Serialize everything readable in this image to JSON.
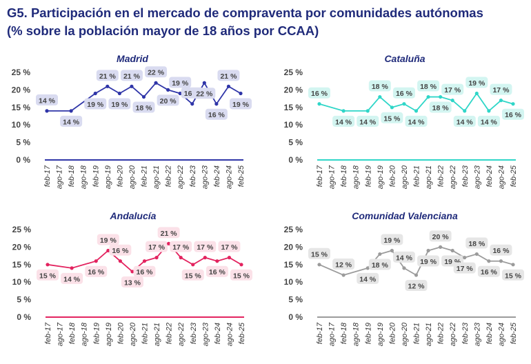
{
  "header": {
    "title_line1": "G5. Participación en el mercado de compraventa por comunidades autónomas",
    "title_line2": "(% sobre la población mayor de 18 años por CCAA)"
  },
  "chart_data": [
    {
      "type": "line",
      "title": "Madrid",
      "color": "#2f35a8",
      "label_bg": "#d9dbf0",
      "categories": [
        "feb-17",
        "ago-17",
        "feb-18",
        "ago-18",
        "feb-19",
        "ago-19",
        "feb-20",
        "ago-20",
        "feb-21",
        "ago-21",
        "feb-22",
        "ago-22",
        "feb-23",
        "ago-23",
        "feb-24",
        "ago-24",
        "feb-25"
      ],
      "values": [
        14,
        null,
        14,
        null,
        19,
        21,
        19,
        21,
        18,
        22,
        20,
        19,
        16,
        22,
        16,
        21,
        19
      ],
      "data_labels": [
        "14 %",
        null,
        "14 %",
        null,
        "19 %",
        "21 %",
        "19 %",
        "21 %",
        "18 %",
        "22 %",
        "20 %",
        "19 %",
        "16 %",
        "22 %",
        "16 %",
        "21 %",
        "19 %"
      ],
      "yticks": [
        "0 %",
        "5 %",
        "10 %",
        "15 %",
        "20 %",
        "25 %"
      ],
      "ylim": [
        0,
        25
      ],
      "grid": false
    },
    {
      "type": "line",
      "title": "Cataluña",
      "color": "#2fd6c8",
      "label_bg": "#d3f5f1",
      "categories": [
        "feb-17",
        "ago-17",
        "feb-18",
        "ago-18",
        "feb-19",
        "ago-19",
        "feb-20",
        "ago-20",
        "feb-21",
        "ago-21",
        "feb-22",
        "ago-22",
        "feb-23",
        "ago-23",
        "feb-24",
        "ago-24",
        "feb-25"
      ],
      "values": [
        16,
        null,
        14,
        null,
        14,
        18,
        15,
        16,
        14,
        18,
        18,
        17,
        14,
        19,
        14,
        17,
        16
      ],
      "data_labels": [
        "16 %",
        null,
        "14 %",
        null,
        "14 %",
        "18 %",
        "15 %",
        "16 %",
        "14 %",
        "18 %",
        "18 %",
        "17 %",
        "14 %",
        "19 %",
        "14 %",
        "17 %",
        "16 %"
      ],
      "yticks": [
        "0 %",
        "5 %",
        "10 %",
        "15 %",
        "20 %",
        "25 %"
      ],
      "ylim": [
        0,
        25
      ],
      "grid": false
    },
    {
      "type": "line",
      "title": "Andalucía",
      "color": "#e3235f",
      "label_bg": "#fbe1e8",
      "categories": [
        "feb-17",
        "ago-17",
        "feb-18",
        "ago-18",
        "feb-19",
        "ago-19",
        "feb-20",
        "ago-20",
        "feb-21",
        "ago-21",
        "feb-22",
        "ago-22",
        "feb-23",
        "ago-23",
        "feb-24",
        "ago-24",
        "feb-25"
      ],
      "values": [
        15,
        null,
        14,
        null,
        16,
        19,
        16,
        13,
        16,
        17,
        21,
        17,
        15,
        17,
        16,
        17,
        15
      ],
      "data_labels": [
        "15 %",
        null,
        "14 %",
        null,
        "16 %",
        "19 %",
        "16 %",
        "13 %",
        "16 %",
        "17 %",
        "21 %",
        "17 %",
        "15 %",
        "17 %",
        "16 %",
        "17 %",
        "15 %"
      ],
      "yticks": [
        "0 %",
        "5 %",
        "10 %",
        "15 %",
        "20 %",
        "25 %"
      ],
      "ylim": [
        0,
        25
      ],
      "grid": false
    },
    {
      "type": "line",
      "title": "Comunidad Valenciana",
      "color": "#9b9b9b",
      "label_bg": "#e6e6e6",
      "categories": [
        "feb-17",
        "ago-17",
        "feb-18",
        "ago-18",
        "feb-19",
        "ago-19",
        "feb-20",
        "ago-20",
        "feb-21",
        "ago-21",
        "feb-22",
        "ago-22",
        "feb-23",
        "ago-23",
        "feb-24",
        "ago-24",
        "feb-25"
      ],
      "values": [
        15,
        null,
        12,
        null,
        14,
        18,
        19,
        14,
        12,
        19,
        20,
        19,
        17,
        18,
        16,
        16,
        15
      ],
      "data_labels": [
        "15 %",
        null,
        "12 %",
        null,
        "14 %",
        "18 %",
        "19 %",
        "14 %",
        "12 %",
        "19 %",
        "20 %",
        "19 %",
        "17 %",
        "18 %",
        "16 %",
        "16 %",
        "15 %"
      ],
      "yticks": [
        "0 %",
        "5 %",
        "10 %",
        "15 %",
        "20 %",
        "25 %"
      ],
      "ylim": [
        0,
        25
      ],
      "grid": false
    }
  ]
}
